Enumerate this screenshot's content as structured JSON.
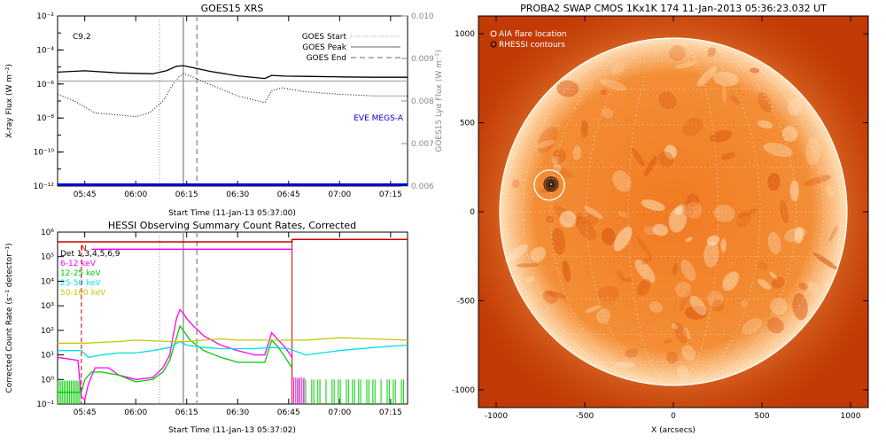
{
  "chart_data": [
    {
      "type": "line",
      "title": "GOES15 XRS",
      "flare_class": "C9.2",
      "xlabel": "Start Time (11-Jan-13 05:37:00)",
      "ylabel": "X-ray Flux (W m⁻²)",
      "y2label": "GOES15 Lyα Flux (W m⁻²)",
      "annotation": "EVE MEGS-A",
      "y_scale": "log",
      "ylim": [
        1e-12,
        0.01
      ],
      "y2lim": [
        0.006,
        0.01
      ],
      "xlim": [
        "05:37",
        "07:20"
      ],
      "x_ticks": [
        "05:45",
        "06:00",
        "06:15",
        "06:30",
        "06:45",
        "07:00",
        "07:15"
      ],
      "y_ticks": [
        "10⁻²",
        "10⁻⁴",
        "10⁻⁶",
        "10⁻⁸",
        "10⁻¹⁰",
        "10⁻¹²"
      ],
      "y2_ticks": [
        "0.010",
        "0.009",
        "0.008",
        "0.007",
        "0.006"
      ],
      "legend_position": "top-right",
      "legend": [
        "GOES Start",
        "GOES Peak",
        "GOES End"
      ],
      "event_times": {
        "start": "06:07",
        "peak": "06:14",
        "end": "06:18"
      },
      "series": [
        {
          "key": "long",
          "color": "#000000",
          "x": [
            "05:37",
            "05:45",
            "05:55",
            "06:00",
            "06:05",
            "06:09",
            "06:12",
            "06:14",
            "06:17",
            "06:22",
            "06:30",
            "06:38",
            "06:40",
            "06:44",
            "06:50",
            "07:00",
            "07:10",
            "07:20"
          ],
          "values": [
            5e-06,
            6e-06,
            4.5e-06,
            4.2e-06,
            4e-06,
            6e-06,
            1.1e-05,
            1.2e-05,
            9e-06,
            5.5e-06,
            3e-06,
            2.1e-06,
            3.2e-06,
            2.9e-06,
            2.8e-06,
            2.6e-06,
            2.5e-06,
            2.5e-06
          ]
        },
        {
          "key": "short",
          "color": "#000000",
          "dotted": true,
          "x": [
            "05:37",
            "05:42",
            "05:48",
            "05:55",
            "06:00",
            "06:04",
            "06:08",
            "06:11",
            "06:13",
            "06:14",
            "06:16",
            "06:18",
            "06:22",
            "06:30",
            "06:38",
            "06:40",
            "06:43",
            "06:45",
            "06:50",
            "07:00",
            "07:10",
            "07:20"
          ],
          "values": [
            2.5e-07,
            1e-07,
            2e-08,
            1.5e-08,
            1.2e-08,
            2e-08,
            1e-07,
            1e-06,
            3e-06,
            4e-06,
            3e-06,
            2e-06,
            9e-07,
            2e-07,
            8e-08,
            4e-07,
            6e-07,
            5e-07,
            3.5e-07,
            2.5e-07,
            2e-07,
            2e-07
          ]
        },
        {
          "key": "lya",
          "color": "#999999",
          "x": [
            "05:37",
            "07:20"
          ],
          "values": [
            1.5e-06,
            1.5e-06
          ]
        },
        {
          "key": "eve",
          "color": "#0000cc",
          "x": [
            "05:37",
            "07:20"
          ],
          "values": [
            1.2e-12,
            1.2e-12
          ]
        }
      ]
    },
    {
      "type": "line",
      "title": "HESSI Observing Summary Count Rates, Corrected",
      "xlabel": "Start Time (11-Jan-13 05:37:02)",
      "ylabel": "Corrected Count Rate (s⁻¹ detector⁻¹)",
      "y_scale": "log",
      "ylim": [
        0.1,
        1000000.0
      ],
      "xlim": [
        "05:37",
        "07:20"
      ],
      "x_ticks": [
        "05:45",
        "06:00",
        "06:15",
        "06:30",
        "06:45",
        "07:00",
        "07:15"
      ],
      "y_ticks": [
        "10⁶",
        "10⁵",
        "10⁴",
        "10³",
        "10²",
        "10¹",
        "10⁰",
        "10⁻¹"
      ],
      "flag": "N",
      "detectors": "Det 1,3,4,5,6,9",
      "event_times": {
        "start": "06:07",
        "peak": "06:14",
        "end": "06:18",
        "n": "05:44",
        "eclipse": "06:46"
      },
      "series": [
        {
          "name": "6-12 keV",
          "color": "#ff00ff",
          "x": [
            "05:37",
            "05:43",
            "05:44",
            "05:45",
            "05:46",
            "05:48",
            "05:52",
            "05:55",
            "06:00",
            "06:05",
            "06:08",
            "06:10",
            "06:11",
            "06:12",
            "06:13",
            "06:14",
            "06:15",
            "06:17",
            "06:20",
            "06:25",
            "06:30",
            "06:35",
            "06:38",
            "06:40",
            "06:42",
            "06:44",
            "06:46"
          ],
          "values": [
            8,
            6,
            0.2,
            0.15,
            0.6,
            3,
            3,
            1.5,
            1,
            1.2,
            3,
            10,
            60,
            300,
            700,
            500,
            300,
            150,
            60,
            25,
            15,
            10,
            10,
            80,
            40,
            20,
            8
          ]
        },
        {
          "name": "12-25 keV",
          "color": "#00cc00",
          "x": [
            "05:37",
            "05:44",
            "05:45",
            "05:47",
            "05:50",
            "05:55",
            "06:00",
            "06:05",
            "06:08",
            "06:10",
            "06:12",
            "06:13",
            "06:14",
            "06:16",
            "06:20",
            "06:25",
            "06:30",
            "06:35",
            "06:38",
            "06:40",
            "06:42",
            "06:44",
            "06:46"
          ],
          "values": [
            0.3,
            0.3,
            1,
            2,
            2,
            1.5,
            0.8,
            1,
            2,
            6,
            50,
            150,
            100,
            40,
            15,
            8,
            5,
            5,
            5,
            40,
            20,
            8,
            3
          ]
        },
        {
          "name": "25-50 keV",
          "color": "#00e0e0",
          "x": [
            "05:37",
            "05:44",
            "05:46",
            "05:50",
            "05:55",
            "06:00",
            "06:05",
            "06:10",
            "06:13",
            "06:15",
            "06:20",
            "06:25",
            "06:30",
            "06:35",
            "06:40",
            "06:45",
            "06:50",
            "07:00",
            "07:10",
            "07:20"
          ],
          "values": [
            15,
            15,
            8,
            10,
            12,
            12,
            15,
            20,
            35,
            25,
            20,
            18,
            18,
            18,
            20,
            18,
            10,
            15,
            20,
            25
          ]
        },
        {
          "name": "50-100 keV",
          "color": "#c8c800",
          "x": [
            "05:37",
            "05:45",
            "05:55",
            "06:00",
            "06:10",
            "06:15",
            "06:20",
            "06:25",
            "06:30",
            "06:40",
            "06:46",
            "06:50",
            "07:00",
            "07:10",
            "07:20"
          ],
          "values": [
            30,
            30,
            35,
            40,
            35,
            35,
            40,
            45,
            40,
            40,
            40,
            40,
            50,
            45,
            40
          ]
        },
        {
          "key": "attenuator",
          "color": "#cc0000",
          "x": [
            "05:37",
            "06:46",
            "06:46",
            "07:20"
          ],
          "values": [
            400000.0,
            400000.0,
            500000.0,
            500000.0
          ]
        },
        {
          "key": "decimation",
          "color": "#ff00ff",
          "x": [
            "05:47",
            "06:46"
          ],
          "values": [
            200000.0,
            200000.0
          ]
        }
      ]
    },
    {
      "type": "image",
      "title": "PROBA2 SWAP CMOS 1Kx1K 174 11-Jan-2013 05:36:23.032 UT",
      "xlabel": "X (arcsecs)",
      "xlim": [
        -1100,
        1100
      ],
      "ylim": [
        -1100,
        1100
      ],
      "x_ticks": [
        -1000,
        -500,
        0,
        500,
        1000
      ],
      "y_ticks": [
        1000,
        500,
        0,
        -500,
        -1000
      ],
      "legend": [
        "AIA flare location",
        "RHESSI contours"
      ],
      "legend_position": "top-left",
      "solar_radius_arcsec": 980,
      "flare_location": [
        -700,
        150
      ],
      "colors": {
        "background": "#c23a05",
        "disk": "#f08a2c",
        "bright": "#ffe6c4"
      }
    }
  ]
}
